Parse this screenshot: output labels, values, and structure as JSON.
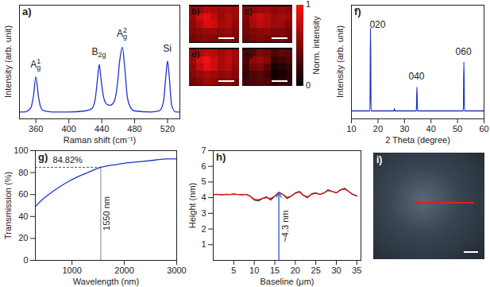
{
  "chart_data": [
    {
      "panel": "a)",
      "type": "line",
      "xlabel": "Raman shift (cm⁻¹)",
      "ylabel": "Intensity (arb. unit)",
      "tick_labels": "x",
      "color": "#1f35c8",
      "x": [
        340,
        345,
        350,
        354,
        357,
        360,
        363,
        366,
        370,
        380,
        400,
        420,
        428,
        432,
        435,
        437,
        439,
        442,
        446,
        450,
        455,
        459,
        462,
        465,
        468,
        471,
        475,
        480,
        500,
        510,
        515,
        518,
        520,
        522,
        525,
        530,
        535
      ],
      "values": [
        0.06,
        0.06,
        0.07,
        0.1,
        0.2,
        0.37,
        0.2,
        0.1,
        0.07,
        0.06,
        0.06,
        0.07,
        0.09,
        0.17,
        0.36,
        0.48,
        0.36,
        0.2,
        0.13,
        0.12,
        0.15,
        0.3,
        0.52,
        0.63,
        0.45,
        0.2,
        0.1,
        0.07,
        0.06,
        0.07,
        0.15,
        0.38,
        0.51,
        0.38,
        0.12,
        0.06,
        0.06
      ],
      "xlim": [
        340,
        535
      ],
      "xticks": [
        360,
        400,
        440,
        480,
        520
      ],
      "ylim": [
        0,
        1
      ],
      "annotations": [
        {
          "x": 360,
          "y": 0.45,
          "text": "A",
          "sub": "g",
          "sup": "1"
        },
        {
          "x": 437,
          "y": 0.56,
          "text": "B",
          "sub": "2g"
        },
        {
          "x": 465,
          "y": 0.72,
          "text": "A",
          "sub": "g",
          "sup": "2"
        },
        {
          "x": 520,
          "y": 0.59,
          "text": "Si"
        }
      ]
    },
    {
      "type": "heatmap",
      "panels": [
        {
          "panel": "b)",
          "cells": [
            [
              0.55,
              0.6,
              0.7,
              0.65,
              0.6,
              0.65,
              0.6
            ],
            [
              0.6,
              0.8,
              0.9,
              0.75,
              0.6,
              0.7,
              0.6
            ],
            [
              0.55,
              0.7,
              0.85,
              0.8,
              0.65,
              0.7,
              0.55
            ],
            [
              0.5,
              0.55,
              0.6,
              0.6,
              0.55,
              0.6,
              0.5
            ],
            [
              0.45,
              0.5,
              0.55,
              0.5,
              0.5,
              0.55,
              0.45
            ]
          ]
        },
        {
          "panel": "c)",
          "cells": [
            [
              0.5,
              0.55,
              0.6,
              0.6,
              0.55,
              0.6,
              0.55
            ],
            [
              0.5,
              0.7,
              0.8,
              0.7,
              0.6,
              0.65,
              0.6
            ],
            [
              0.45,
              0.65,
              0.75,
              0.7,
              0.6,
              0.6,
              0.5
            ],
            [
              0.45,
              0.5,
              0.55,
              0.55,
              0.5,
              0.5,
              0.45
            ],
            [
              0.4,
              0.45,
              0.5,
              0.45,
              0.45,
              0.5,
              0.4
            ]
          ]
        },
        {
          "panel": "d)",
          "cells": [
            [
              0.6,
              0.65,
              0.75,
              0.7,
              0.6,
              0.7,
              0.6
            ],
            [
              0.6,
              0.85,
              0.95,
              0.8,
              0.65,
              0.75,
              0.6
            ],
            [
              0.55,
              0.75,
              0.9,
              0.8,
              0.65,
              0.7,
              0.55
            ],
            [
              0.5,
              0.6,
              0.65,
              0.6,
              0.55,
              0.6,
              0.5
            ],
            [
              0.45,
              0.5,
              0.6,
              0.55,
              0.5,
              0.55,
              0.45
            ]
          ]
        },
        {
          "panel": "e)",
          "cells": [
            [
              0.3,
              0.35,
              0.5,
              0.45,
              0.3,
              0.4,
              0.35
            ],
            [
              0.3,
              0.55,
              0.6,
              0.5,
              0.2,
              0.25,
              0.3
            ],
            [
              0.25,
              0.45,
              0.5,
              0.35,
              0.1,
              0.15,
              0.2
            ],
            [
              0.2,
              0.3,
              0.35,
              0.25,
              0.05,
              0.1,
              0.15
            ],
            [
              0.25,
              0.3,
              0.35,
              0.3,
              0.15,
              0.2,
              0.2
            ]
          ]
        }
      ],
      "colorbar": {
        "label": "Norm. intensity",
        "range": [
          0,
          1
        ],
        "ticks": [
          0,
          1
        ]
      }
    },
    {
      "panel": "f)",
      "type": "line",
      "xlabel": "2 Theta (degree)",
      "ylabel": "Intensity (arb. unit)",
      "tick_labels": "x",
      "color": "#1f35c8",
      "x": [
        10,
        17,
        17.2,
        17.4,
        26,
        26.2,
        26.4,
        34.5,
        34.7,
        34.9,
        52.2,
        52.4,
        52.6,
        60
      ],
      "values": [
        0.07,
        0.07,
        0.8,
        0.07,
        0.07,
        0.09,
        0.07,
        0.07,
        0.28,
        0.07,
        0.07,
        0.5,
        0.07,
        0.07
      ],
      "xlim": [
        10,
        60
      ],
      "xticks": [
        10,
        20,
        30,
        40,
        50,
        60
      ],
      "ylim": [
        0,
        1
      ],
      "annotations": [
        {
          "x": 20,
          "y": 0.8,
          "text": "020"
        },
        {
          "x": 34.7,
          "y": 0.34,
          "text": "040"
        },
        {
          "x": 52.4,
          "y": 0.56,
          "text": "060"
        }
      ]
    },
    {
      "panel": "g)",
      "type": "line",
      "xlabel": "Wavelength (nm)",
      "ylabel": "Transmission (%)",
      "color": "#1f35c8",
      "x": [
        300,
        400,
        500,
        700,
        900,
        1100,
        1300,
        1550,
        1800,
        2000,
        2300,
        2600,
        2800,
        3000
      ],
      "values": [
        49,
        54,
        58,
        65,
        71,
        76,
        80,
        84.82,
        87,
        88.5,
        90,
        91.5,
        92.5,
        92.5
      ],
      "xlim": [
        300,
        3000
      ],
      "xticks": [
        1000,
        2000,
        3000
      ],
      "ylim": [
        0,
        100
      ],
      "yticks": [
        0,
        20,
        40,
        60,
        80,
        100
      ],
      "hline": {
        "y": 84.82,
        "label": "84.82%"
      },
      "vline": {
        "x": 1550,
        "label": "1550 nm"
      }
    },
    {
      "panel": "h)",
      "type": "line",
      "xlabel": "Baseline (μm)",
      "ylabel": "Height (nm)",
      "x": [
        0,
        1,
        2,
        3,
        4,
        5,
        6,
        7,
        8,
        9,
        10,
        11,
        12,
        13,
        14,
        15,
        16,
        17,
        18,
        19,
        20,
        21,
        22,
        23,
        24,
        25,
        26,
        27,
        28,
        29,
        30,
        31,
        32,
        33,
        34,
        35
      ],
      "series": [
        {
          "color": "#222222",
          "values": [
            4.2,
            4.22,
            4.18,
            4.22,
            4.2,
            4.24,
            4.2,
            4.18,
            4.22,
            4.1,
            3.85,
            3.8,
            3.95,
            4.05,
            3.85,
            4.1,
            4.35,
            4.2,
            3.95,
            4.1,
            4.3,
            4.4,
            4.15,
            4.0,
            4.25,
            4.3,
            4.2,
            4.3,
            4.5,
            4.4,
            4.3,
            4.5,
            4.6,
            4.4,
            4.2,
            4.1
          ]
        },
        {
          "color": "#e0201b",
          "values": [
            4.2,
            4.2,
            4.2,
            4.2,
            4.2,
            4.2,
            4.2,
            4.2,
            4.2,
            4.1,
            3.9,
            3.88,
            3.95,
            4.0,
            3.95,
            4.1,
            4.3,
            4.2,
            4.02,
            4.1,
            4.28,
            4.35,
            4.15,
            4.05,
            4.22,
            4.28,
            4.22,
            4.3,
            4.45,
            4.4,
            4.32,
            4.48,
            4.55,
            4.4,
            4.22,
            4.12
          ]
        }
      ],
      "xlim": [
        0,
        36
      ],
      "xticks": [
        5,
        10,
        15,
        20,
        25,
        30,
        35
      ],
      "ylim": [
        0,
        7
      ],
      "yticks": [
        1,
        2,
        3,
        4,
        5,
        6,
        7
      ],
      "arrow": {
        "x": 16,
        "y": 4.3,
        "label": "~4.3 nm",
        "color": "#3b6fe0"
      }
    },
    {
      "panel": "i)",
      "type": "image"
    }
  ]
}
